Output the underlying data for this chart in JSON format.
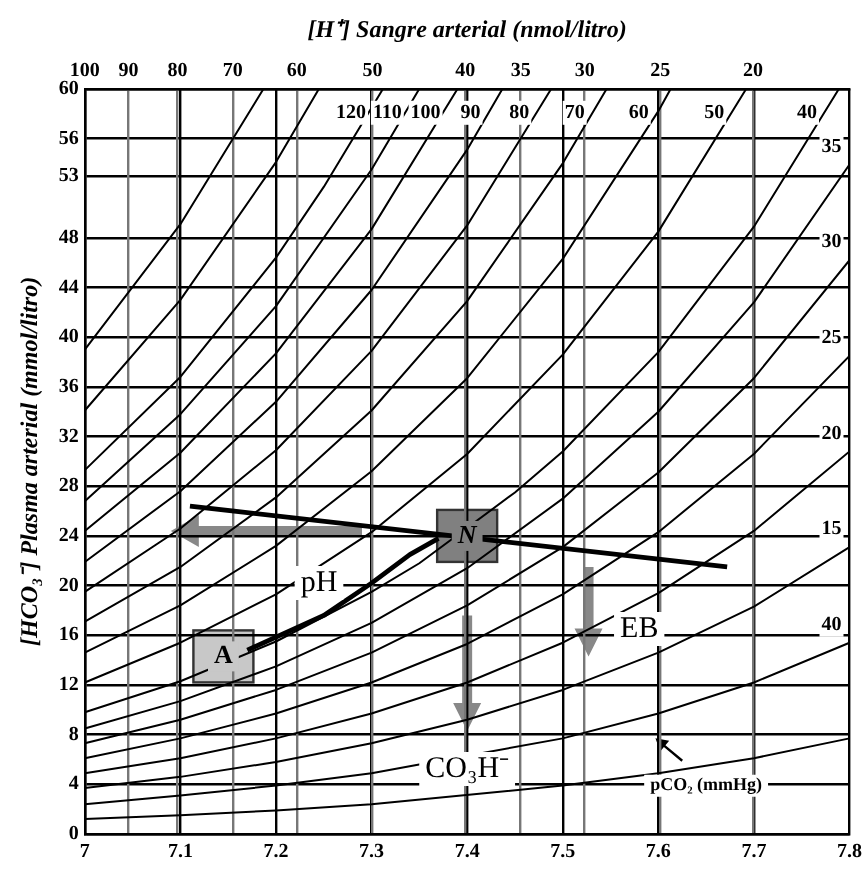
{
  "chart_data": {
    "type": "line",
    "x2label": "[H⁺] Sangre arterial (nmol/litro)",
    "ylabel": "[HCO₃⁻] Plasma arterial (mmol/litro)",
    "xlim": [
      7.0,
      7.8
    ],
    "xticks": [
      7.0,
      7.1,
      7.2,
      7.3,
      7.4,
      7.5,
      7.6,
      7.7,
      7.8
    ],
    "x2lim": [
      100,
      15.85
    ],
    "x2ticks": [
      100,
      90,
      80,
      70,
      60,
      50,
      40,
      35,
      30,
      25,
      20
    ],
    "ylim": [
      0,
      60
    ],
    "yticks": [
      0,
      4,
      8,
      12,
      16,
      20,
      24,
      28,
      32,
      36,
      40,
      44,
      48,
      53,
      56,
      60
    ],
    "grid": true,
    "log": "x2",
    "legend": false,
    "marker": "none",
    "line_style": "solid",
    "series": [
      {
        "color": "#000000",
        "x": [
          7.0,
          7.1,
          7.187
        ],
        "values": [
          39.0,
          49.1,
          60
        ]
      },
      {
        "color": "#000000",
        "x": [
          7.0,
          7.1,
          7.2,
          7.245
        ],
        "values": [
          34.1,
          43.0,
          54.1,
          60
        ]
      },
      {
        "name": "120",
        "color": "#000000",
        "x": [
          7.0,
          7.1,
          7.2,
          7.25,
          7.312
        ],
        "values": [
          29.3,
          36.8,
          46.4,
          52.1,
          60
        ]
      },
      {
        "name": "110",
        "color": "#000000",
        "x": [
          7.0,
          7.1,
          7.2,
          7.3,
          7.35
        ],
        "values": [
          26.8,
          33.8,
          42.5,
          53.5,
          60
        ]
      },
      {
        "name": "100",
        "color": "#000000",
        "x": [
          7.0,
          7.1,
          7.2,
          7.3,
          7.39
        ],
        "values": [
          24.4,
          30.7,
          38.7,
          48.7,
          60
        ]
      },
      {
        "name": "90",
        "color": "#000000",
        "x": [
          7.0,
          7.1,
          7.2,
          7.3,
          7.4,
          7.437
        ],
        "values": [
          21.9,
          27.6,
          34.8,
          43.8,
          55.1,
          60
        ]
      },
      {
        "name": "80",
        "color": "#000000",
        "x": [
          7.0,
          7.1,
          7.2,
          7.3,
          7.4,
          7.488
        ],
        "values": [
          19.5,
          24.6,
          30.9,
          38.9,
          49.0,
          60
        ]
      },
      {
        "name": "70",
        "color": "#000000",
        "x": [
          7.0,
          7.1,
          7.2,
          7.3,
          7.4,
          7.5,
          7.546
        ],
        "values": [
          17.1,
          21.5,
          27.1,
          34.1,
          42.9,
          54.0,
          60
        ]
      },
      {
        "name": "60",
        "color": "#000000",
        "x": [
          7.0,
          7.1,
          7.2,
          7.3,
          7.4,
          7.5,
          7.6,
          7.613
        ],
        "values": [
          14.6,
          18.4,
          23.2,
          29.2,
          36.7,
          46.3,
          58.2,
          60
        ]
      },
      {
        "name": "50",
        "color": "#000000",
        "x": [
          7.0,
          7.1,
          7.2,
          7.3,
          7.4,
          7.5,
          7.6,
          7.692
        ],
        "values": [
          12.2,
          15.4,
          19.3,
          24.3,
          30.6,
          38.6,
          48.5,
          60
        ]
      },
      {
        "name": "40",
        "color": "#000000",
        "x": [
          7.0,
          7.1,
          7.2,
          7.3,
          7.35,
          7.45,
          7.5,
          7.6,
          7.7,
          7.789
        ],
        "values": [
          9.8,
          12.3,
          15.5,
          19.5,
          21.8,
          27.5,
          30.8,
          38.8,
          48.9,
          60
        ]
      },
      {
        "name": "35",
        "color": "#000000",
        "x": [
          7.0,
          7.1,
          7.2,
          7.3,
          7.4,
          7.5,
          7.6,
          7.7,
          7.8
        ],
        "values": [
          8.5,
          10.7,
          13.5,
          17.0,
          21.4,
          27.0,
          34.0,
          42.8,
          53.9
        ]
      },
      {
        "name": "30",
        "color": "#000000",
        "x": [
          7.0,
          7.1,
          7.2,
          7.3,
          7.4,
          7.5,
          7.6,
          7.7,
          7.8
        ],
        "values": [
          7.3,
          9.2,
          11.6,
          14.6,
          18.4,
          23.1,
          29.1,
          36.7,
          46.2
        ]
      },
      {
        "name": "25",
        "color": "#000000",
        "x": [
          7.0,
          7.1,
          7.2,
          7.3,
          7.4,
          7.5,
          7.6,
          7.7,
          7.8
        ],
        "values": [
          6.1,
          7.7,
          9.7,
          12.2,
          15.3,
          19.3,
          24.3,
          30.6,
          38.5
        ]
      },
      {
        "name": "20",
        "color": "#000000",
        "x": [
          7.0,
          7.1,
          7.2,
          7.3,
          7.4,
          7.5,
          7.6,
          7.7,
          7.8
        ],
        "values": [
          4.9,
          6.1,
          7.7,
          9.7,
          12.2,
          15.4,
          19.4,
          24.4,
          30.8
        ]
      },
      {
        "name": "15",
        "color": "#000000",
        "x": [
          7.0,
          7.1,
          7.2,
          7.3,
          7.4,
          7.5,
          7.6,
          7.7,
          7.8
        ],
        "values": [
          3.7,
          4.6,
          5.8,
          7.3,
          9.2,
          11.6,
          14.6,
          18.3,
          23.1
        ]
      },
      {
        "name": "40",
        "color": "#000000",
        "x": [
          7.0,
          7.1,
          7.2,
          7.3,
          7.5,
          7.6,
          7.7,
          7.8
        ],
        "values": [
          2.4,
          3.1,
          3.9,
          4.9,
          7.7,
          9.7,
          12.2,
          15.4
        ]
      },
      {
        "color": "#000000",
        "x": [
          7.0,
          7.1,
          7.2,
          7.3,
          7.5,
          7.6,
          7.7,
          7.8
        ],
        "values": [
          1.2,
          1.5,
          1.9,
          2.4,
          3.9,
          4.9,
          6.1,
          7.7
        ]
      },
      {
        "color": "#000000",
        "x": [
          7.11,
          7.672
        ],
        "values": [
          26.4,
          21.5
        ]
      },
      {
        "color": "#000000",
        "x": [
          7.17,
          7.25,
          7.3,
          7.34,
          7.37
        ],
        "values": [
          14.8,
          17.6,
          20.2,
          22.5,
          23.8
        ]
      }
    ],
    "annotations": [
      {
        "text": "N",
        "x": 7.4,
        "y": 24
      },
      {
        "text": "A",
        "x": 7.145,
        "y": 14.3
      },
      {
        "text": "pH",
        "x": 7.245,
        "y": 20.2
      },
      {
        "text": "EB",
        "x": 7.58,
        "y": 16.5
      },
      {
        "text": "CO₃H⁻",
        "x": 7.4,
        "y": 8.3
      },
      {
        "text": "pCO₂ (mmHg)",
        "x": 7.65,
        "y": 4.7
      }
    ]
  }
}
